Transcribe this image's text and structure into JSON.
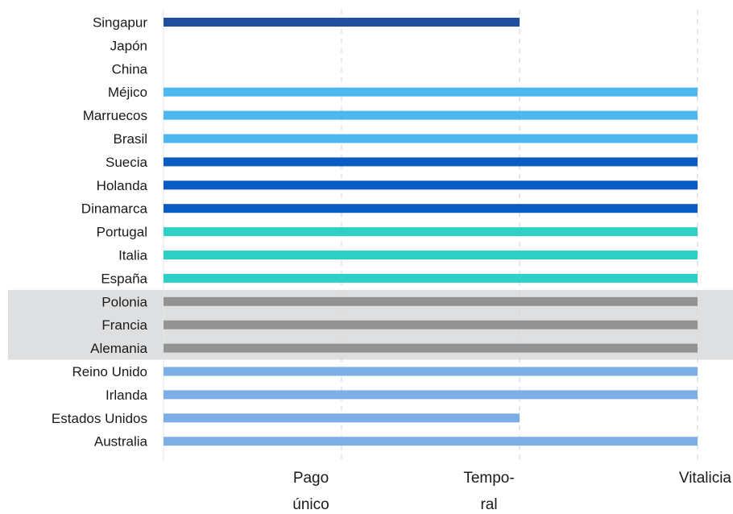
{
  "chart_data": {
    "type": "bar",
    "orientation": "horizontal",
    "categories": [
      "Singapur",
      "Japón",
      "China",
      "Méjico",
      "Marruecos",
      "Brasil",
      "Suecia",
      "Holanda",
      "Dinamarca",
      "Portugal",
      "Italia",
      "España",
      "Polonia",
      "Francia",
      "Alemania",
      "Reino Unido",
      "Irlanda",
      "Estados Unidos",
      "Australia"
    ],
    "values": [
      2,
      0,
      0,
      3,
      3,
      3,
      3,
      3,
      3,
      3,
      3,
      3,
      3,
      3,
      3,
      3,
      3,
      2,
      3
    ],
    "colors": [
      "#1f4e9c",
      "#1f4e9c",
      "#1f4e9c",
      "#4db8f0",
      "#4db8f0",
      "#4db8f0",
      "#0a5cc4",
      "#0a5cc4",
      "#0a5cc4",
      "#2ecfc4",
      "#2ecfc4",
      "#2ecfc4",
      "#939393",
      "#939393",
      "#939393",
      "#7eaee6",
      "#7eaee6",
      "#7eaee6",
      "#7eaee6"
    ],
    "highlight_categories": [
      "Polonia",
      "Francia",
      "Alemania"
    ],
    "highlight_color": "#dedfe0",
    "xlim": [
      0,
      3
    ],
    "xticks": [
      {
        "value": 1,
        "lines": [
          "Pago",
          "único"
        ]
      },
      {
        "value": 2,
        "lines": [
          "Tempo-",
          "ral"
        ]
      },
      {
        "value": 3,
        "lines": [
          "Vitalicia"
        ]
      }
    ],
    "grid": "vertical-dashed",
    "title": "",
    "xlabel": "",
    "ylabel": ""
  }
}
